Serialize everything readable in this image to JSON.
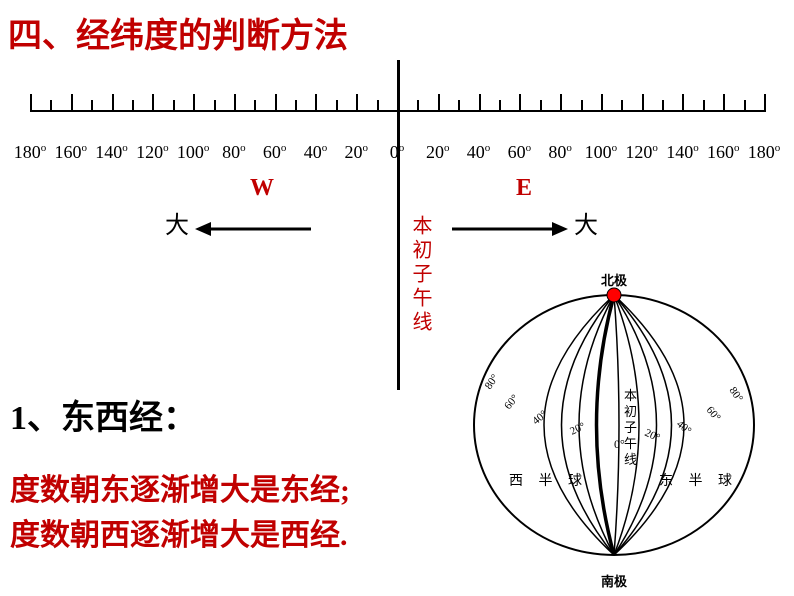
{
  "title": {
    "text": "四、经纬度的判断方法",
    "color": "#c00000",
    "fontsize": 34
  },
  "scale": {
    "labels_left": [
      "180",
      "160",
      "140",
      "120",
      "100",
      "80",
      "60",
      "40",
      "20"
    ],
    "center": "0",
    "labels_right": [
      "20",
      "40",
      "60",
      "80",
      "100",
      "120",
      "140",
      "160",
      "180"
    ],
    "tick_count": 19,
    "line_color": "#000000"
  },
  "arrows": {
    "west": {
      "side_text": "大",
      "letter": "W",
      "letter_color": "#c00000",
      "arrow_color": "#000000"
    },
    "east": {
      "side_text": "大",
      "letter": "E",
      "letter_color": "#c00000",
      "arrow_color": "#000000"
    }
  },
  "meridian_text": {
    "text": "本初子午线",
    "color": "#c00000"
  },
  "subtitle": {
    "text": "1、东西经：",
    "color": "#000000",
    "fontsize": 34
  },
  "rule_lines": {
    "line1": "度数朝东逐渐增大是东经;",
    "line2": "度数朝西逐渐增大是西经.",
    "color": "#c00000",
    "fontsize": 30
  },
  "globe": {
    "north": "北极",
    "south": "南极",
    "west_hemi": "西 半 球",
    "east_hemi": "东 半 球",
    "prime_meridian_vertical": "本初子午线",
    "degree_labels": [
      "80°",
      "60°",
      "40°",
      "20°",
      "0°",
      "20°",
      "40°",
      "60°",
      "80°"
    ],
    "outline_color": "#000000",
    "pole_dot_color": "#ff0000"
  },
  "colors": {
    "background": "#ffffff",
    "black": "#000000",
    "red": "#c00000",
    "bright_red": "#ff0000"
  }
}
